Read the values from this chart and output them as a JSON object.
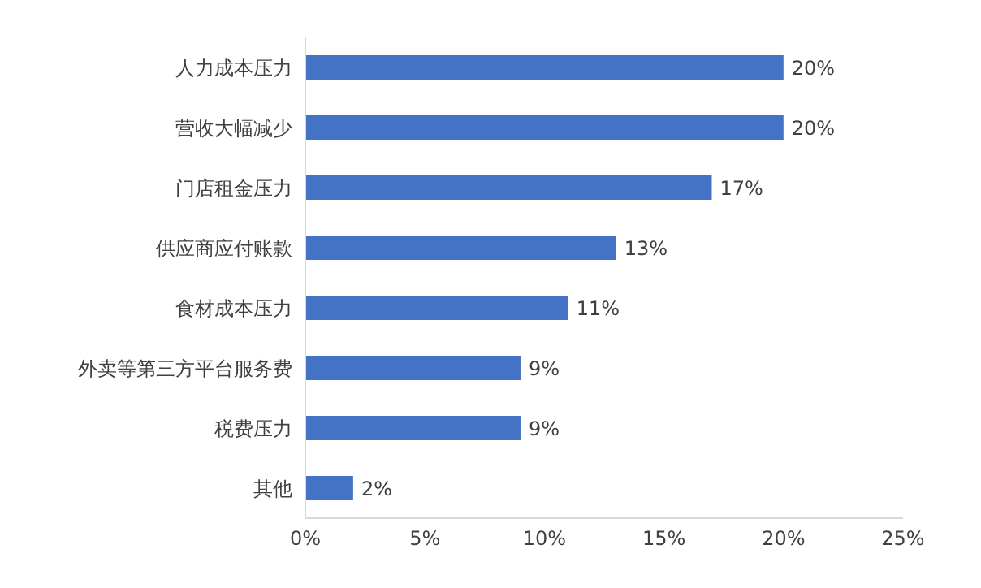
{
  "chart_data": {
    "type": "bar",
    "orientation": "horizontal",
    "categories": [
      "人力成本压力",
      "营收大幅减少",
      "门店租金压力",
      "供应商应付账款",
      "食材成本压力",
      "外卖等第三方平台服务费",
      "税费压力",
      "其他"
    ],
    "values": [
      20,
      20,
      17,
      13,
      11,
      9,
      9,
      2
    ],
    "value_labels": [
      "20%",
      "20%",
      "17%",
      "13%",
      "11%",
      "9%",
      "9%",
      "2%"
    ],
    "color": "#4472c4",
    "xlim": [
      0,
      25
    ],
    "xticks": [
      {
        "value": 0,
        "label": "0%"
      },
      {
        "value": 5,
        "label": "5%"
      },
      {
        "value": 10,
        "label": "10%"
      },
      {
        "value": 15,
        "label": "15%"
      },
      {
        "value": 20,
        "label": "20%"
      },
      {
        "value": 25,
        "label": "25%"
      }
    ],
    "grid": false,
    "legend": false
  }
}
